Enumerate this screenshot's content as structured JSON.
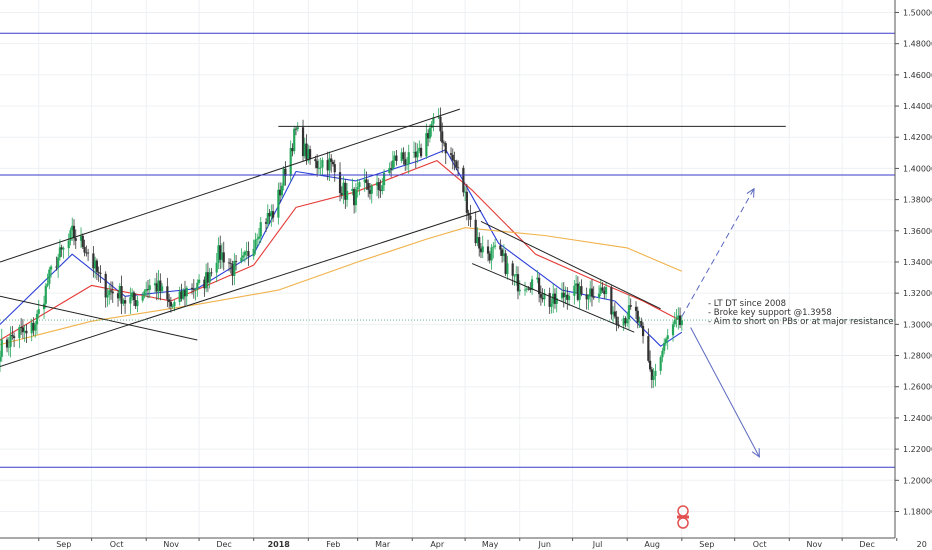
{
  "chart_data": {
    "type": "candlestick",
    "xlabel": "",
    "ylabel": "",
    "ylim": [
      1.163,
      1.508
    ],
    "grid": true,
    "colors": {
      "up": "#26a65b",
      "down": "#333333",
      "ema_fast": "#2a3fd8",
      "ema_mid": "#e53935",
      "ema_slow": "#f0b24a",
      "level": "#3a3acb",
      "trendline": "#222222",
      "projection": "#5a68c0",
      "last_price": "#4caf7d"
    },
    "x_tick_labels": [
      "Sep",
      "Oct",
      "Nov",
      "Dec",
      "2018",
      "Feb",
      "Mar",
      "Apr",
      "May",
      "Jun",
      "Jul",
      "Aug",
      "Sep",
      "Oct",
      "Nov",
      "Dec",
      "20"
    ],
    "y_tick_labels": [
      "1.50000",
      "1.48000",
      "1.46000",
      "1.44000",
      "1.42000",
      "1.40000",
      "1.38000",
      "1.36000",
      "1.34000",
      "1.32000",
      "1.30000",
      "1.28000",
      "1.26000",
      "1.24000",
      "1.22000",
      "1.20000",
      "1.18000"
    ],
    "y_tick_values": [
      1.5,
      1.48,
      1.46,
      1.44,
      1.42,
      1.4,
      1.38,
      1.36,
      1.34,
      1.32,
      1.3,
      1.28,
      1.26,
      1.24,
      1.22,
      1.2,
      1.18
    ],
    "x_date_range": [
      "2017-08-10",
      "2018-12-31"
    ],
    "price_path": [
      [
        "2017-08-10",
        1.289
      ],
      [
        "2017-08-25",
        1.292
      ],
      [
        "2017-09-10",
        1.335
      ],
      [
        "2017-09-20",
        1.362
      ],
      [
        "2017-10-01",
        1.338
      ],
      [
        "2017-10-10",
        1.325
      ],
      [
        "2017-10-20",
        1.312
      ],
      [
        "2017-10-31",
        1.325
      ],
      [
        "2017-11-15",
        1.315
      ],
      [
        "2017-11-30",
        1.322
      ],
      [
        "2017-12-10",
        1.345
      ],
      [
        "2017-12-20",
        1.335
      ],
      [
        "2018-01-01",
        1.352
      ],
      [
        "2018-01-12",
        1.375
      ],
      [
        "2018-01-25",
        1.42
      ],
      [
        "2018-02-05",
        1.405
      ],
      [
        "2018-02-15",
        1.398
      ],
      [
        "2018-02-28",
        1.38
      ],
      [
        "2018-03-10",
        1.388
      ],
      [
        "2018-03-25",
        1.405
      ],
      [
        "2018-04-05",
        1.41
      ],
      [
        "2018-04-15",
        1.43
      ],
      [
        "2018-04-25",
        1.405
      ],
      [
        "2018-05-05",
        1.36
      ],
      [
        "2018-05-20",
        1.34
      ],
      [
        "2018-06-10",
        1.322
      ],
      [
        "2018-06-25",
        1.315
      ],
      [
        "2018-07-10",
        1.325
      ],
      [
        "2018-07-25",
        1.31
      ],
      [
        "2018-08-05",
        1.305
      ],
      [
        "2018-08-15",
        1.27
      ],
      [
        "2018-08-25",
        1.29
      ],
      [
        "2018-09-01",
        1.3027
      ]
    ],
    "moving_averages": [
      {
        "values": [
          [
            "2017-08-10",
            1.3
          ],
          [
            "2017-09-20",
            1.345
          ],
          [
            "2017-10-20",
            1.318
          ],
          [
            "2017-11-30",
            1.323
          ],
          [
            "2018-01-01",
            1.345
          ],
          [
            "2018-01-25",
            1.398
          ],
          [
            "2018-02-28",
            1.392
          ],
          [
            "2018-04-05",
            1.405
          ],
          [
            "2018-04-20",
            1.412
          ],
          [
            "2018-05-20",
            1.352
          ],
          [
            "2018-06-25",
            1.322
          ],
          [
            "2018-07-25",
            1.315
          ],
          [
            "2018-08-20",
            1.286
          ],
          [
            "2018-09-01",
            1.295
          ]
        ]
      },
      {
        "values": [
          [
            "2017-08-10",
            1.29
          ],
          [
            "2017-10-01",
            1.325
          ],
          [
            "2017-11-15",
            1.315
          ],
          [
            "2018-01-01",
            1.338
          ],
          [
            "2018-01-25",
            1.375
          ],
          [
            "2018-02-28",
            1.385
          ],
          [
            "2018-04-15",
            1.405
          ],
          [
            "2018-05-05",
            1.386
          ],
          [
            "2018-06-10",
            1.345
          ],
          [
            "2018-07-10",
            1.33
          ],
          [
            "2018-08-10",
            1.315
          ],
          [
            "2018-09-01",
            1.302
          ]
        ]
      },
      {
        "values": [
          [
            "2017-08-10",
            1.287
          ],
          [
            "2017-10-01",
            1.302
          ],
          [
            "2017-12-01",
            1.313
          ],
          [
            "2018-01-15",
            1.322
          ],
          [
            "2018-03-01",
            1.34
          ],
          [
            "2018-04-10",
            1.355
          ],
          [
            "2018-05-01",
            1.362
          ],
          [
            "2018-06-15",
            1.357
          ],
          [
            "2018-08-01",
            1.349
          ],
          [
            "2018-09-01",
            1.334
          ]
        ]
      }
    ],
    "horizontal_levels": [
      {
        "price": 1.48668,
        "label": "1.48668"
      },
      {
        "price": 1.3958,
        "label": "1.39580"
      },
      {
        "price": 1.20836,
        "label": "1.20836"
      }
    ],
    "last_price": {
      "price": 1.30276,
      "label": "1.30276"
    },
    "trendlines": [
      {
        "from": [
          "2017-08-10",
          1.34
        ],
        "to": [
          "2018-04-28",
          1.438
        ],
        "style": "solid"
      },
      {
        "from": [
          "2017-08-10",
          1.273
        ],
        "to": [
          "2018-05-10",
          1.373
        ],
        "style": "solid"
      },
      {
        "from": [
          "2017-08-10",
          1.318
        ],
        "to": [
          "2017-11-30",
          1.29
        ],
        "style": "solid"
      },
      {
        "from": [
          "2018-01-15",
          1.427
        ],
        "to": [
          "2018-10-30",
          1.427
        ],
        "style": "solid"
      },
      {
        "from": [
          "2018-05-05",
          1.339
        ],
        "to": [
          "2018-08-05",
          1.295
        ],
        "style": "solid"
      },
      {
        "from": [
          "2018-05-10",
          1.366
        ],
        "to": [
          "2018-08-20",
          1.31
        ],
        "style": "solid"
      },
      {
        "from": [
          "2018-09-01",
          1.305
        ],
        "to": [
          "2018-10-12",
          1.387
        ],
        "style": "dashed",
        "arrow": true
      },
      {
        "from": [
          "2018-09-06",
          1.298
        ],
        "to": [
          "2018-10-15",
          1.215
        ],
        "style": "solid",
        "arrow": true
      }
    ],
    "annotations": [
      "- LT DT since 2008",
      "- Broke key support @1.3958",
      "- Aim to short on PBs or at major resistance"
    ]
  }
}
